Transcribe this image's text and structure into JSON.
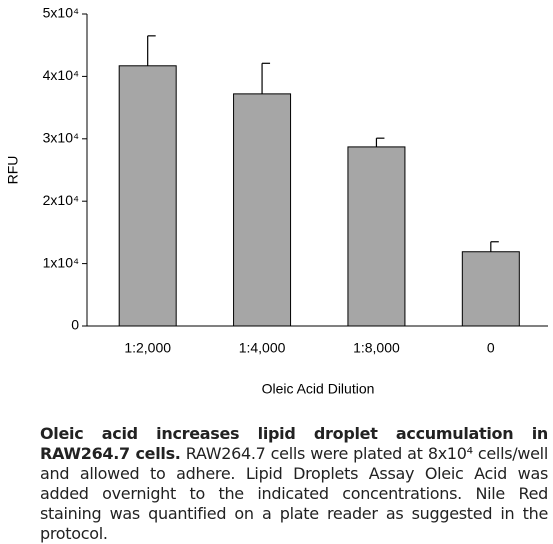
{
  "chart_data": {
    "type": "bar",
    "x_label": "Oleic Acid Dilution",
    "y_label": "RFU",
    "categories": [
      "1:2,000",
      "1:4,000",
      "1:8,000",
      "0"
    ],
    "values": [
      41700,
      37200,
      28700,
      11900
    ],
    "errors": [
      4800,
      4900,
      1400,
      1600
    ],
    "color": "#a6a6a6",
    "ylim": [
      0,
      50000
    ],
    "yticks": [
      0,
      {
        "value": 10000,
        "label": "1x10⁴"
      },
      {
        "value": 20000,
        "label": "2x10⁴"
      },
      {
        "value": 30000,
        "label": "3x10⁴"
      },
      {
        "value": 40000,
        "label": "4x10⁴"
      },
      {
        "value": 50000,
        "label": "5x10⁴"
      }
    ],
    "grid": false
  },
  "caption": {
    "bold": "Oleic acid increases lipid droplet accumulation in RAW264.7 cells.",
    "text": "RAW264.7 cells were plated at 8x10⁴ cells/well and allowed to adhere. Lipid Droplets Assay Oleic Acid was added overnight to the indicated concentrations. Nile Red staining was quantified on a plate reader as suggested in the protocol."
  }
}
